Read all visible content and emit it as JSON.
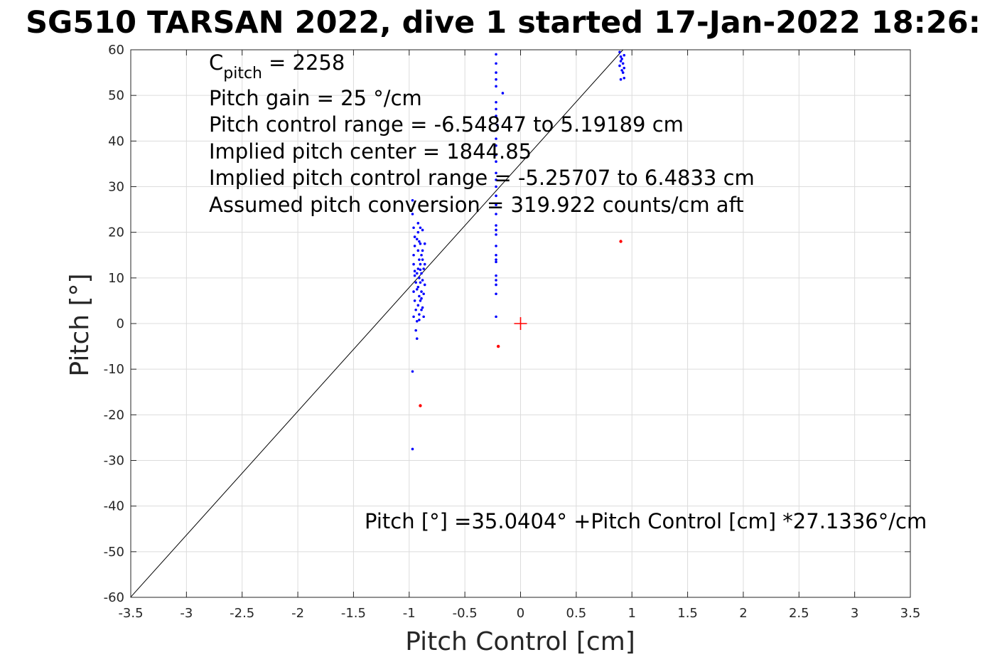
{
  "chart_data": {
    "type": "scatter",
    "title": "SG510 TARSAN 2022, dive 1 started 17-Jan-2022 18:26:",
    "xlabel": "Pitch Control [cm]",
    "ylabel": "Pitch [°]",
    "xlim": [
      -3.5,
      3.5
    ],
    "ylim": [
      -60,
      60
    ],
    "xticks": [
      -3.5,
      -3,
      -2.5,
      -2,
      -1.5,
      -1,
      -0.5,
      0,
      0.5,
      1,
      1.5,
      2,
      2.5,
      3,
      3.5
    ],
    "xtick_labels": [
      "-3.5",
      "-3",
      "-2.5",
      "-2",
      "-1.5",
      "-1",
      "-0.5",
      "0",
      "0.5",
      "1",
      "1.5",
      "2",
      "2.5",
      "3",
      "3.5"
    ],
    "yticks": [
      -60,
      -50,
      -40,
      -30,
      -20,
      -10,
      0,
      10,
      20,
      30,
      40,
      50,
      60
    ],
    "ytick_labels": [
      "-60",
      "-50",
      "-40",
      "-30",
      "-20",
      "-10",
      "0",
      "10",
      "20",
      "30",
      "40",
      "50",
      "60"
    ],
    "grid": true,
    "colors": {
      "used": "#0000ff",
      "excluded": "#ff0000",
      "fit": "#000000",
      "center": "#ff0000"
    },
    "series": [
      {
        "color": "#0000ff",
        "points": [
          [
            -0.97,
            27
          ],
          [
            -0.97,
            24
          ],
          [
            -0.96,
            21
          ],
          [
            -0.95,
            19
          ],
          [
            -0.95,
            17
          ],
          [
            -0.96,
            15
          ],
          [
            -0.96,
            13
          ],
          [
            -0.95,
            11.5
          ],
          [
            -0.95,
            10.5
          ],
          [
            -0.94,
            9
          ],
          [
            -0.96,
            7
          ],
          [
            -0.95,
            5
          ],
          [
            -0.94,
            3
          ],
          [
            -0.96,
            1.5
          ],
          [
            -0.93,
            0.5
          ],
          [
            -0.94,
            -1.5
          ],
          [
            -0.93,
            -3.3
          ],
          [
            -0.97,
            -10.5
          ],
          [
            -0.97,
            -27.5
          ],
          [
            -0.92,
            22
          ],
          [
            -0.91,
            18
          ],
          [
            -0.92,
            16
          ],
          [
            -0.91,
            14
          ],
          [
            -0.92,
            12
          ],
          [
            -0.91,
            10
          ],
          [
            -0.92,
            8
          ],
          [
            -0.91,
            6
          ],
          [
            -0.92,
            4
          ],
          [
            -0.91,
            2
          ],
          [
            -0.9,
            21
          ],
          [
            -0.9,
            17.5
          ],
          [
            -0.89,
            15
          ],
          [
            -0.9,
            13
          ],
          [
            -0.89,
            11
          ],
          [
            -0.9,
            9
          ],
          [
            -0.89,
            7
          ],
          [
            -0.9,
            5
          ],
          [
            -0.89,
            3
          ],
          [
            -0.88,
            20.5
          ],
          [
            -0.88,
            16
          ],
          [
            -0.87,
            12
          ],
          [
            -0.88,
            9.5
          ],
          [
            -0.87,
            6.5
          ],
          [
            -0.88,
            3.5
          ],
          [
            -0.87,
            1.5
          ],
          [
            -0.86,
            17.5
          ],
          [
            -0.86,
            13
          ],
          [
            -0.86,
            8.5
          ],
          [
            -0.93,
            18.5
          ],
          [
            -0.93,
            11
          ],
          [
            -0.93,
            7.5
          ],
          [
            -0.91,
            0.8
          ],
          [
            -0.88,
            14
          ],
          [
            -0.92,
            20
          ],
          [
            -0.9,
            11.8
          ],
          [
            -0.89,
            5.5
          ],
          [
            -0.22,
            59
          ],
          [
            -0.22,
            57
          ],
          [
            -0.22,
            55
          ],
          [
            -0.22,
            53.5
          ],
          [
            -0.22,
            52
          ],
          [
            -0.16,
            50.5
          ],
          [
            -0.22,
            48.5
          ],
          [
            -0.22,
            47
          ],
          [
            -0.22,
            45.5
          ],
          [
            -0.21,
            43.5
          ],
          [
            -0.22,
            40.5
          ],
          [
            -0.22,
            39
          ],
          [
            -0.22,
            37
          ],
          [
            -0.22,
            35.5
          ],
          [
            -0.22,
            33
          ],
          [
            -0.22,
            31.5
          ],
          [
            -0.22,
            30
          ],
          [
            -0.22,
            28
          ],
          [
            -0.22,
            26
          ],
          [
            -0.22,
            24
          ],
          [
            -0.22,
            21.5
          ],
          [
            -0.22,
            20.5
          ],
          [
            -0.22,
            19.5
          ],
          [
            -0.22,
            17
          ],
          [
            -0.22,
            15
          ],
          [
            -0.22,
            14
          ],
          [
            -0.22,
            13.5
          ],
          [
            -0.22,
            10.5
          ],
          [
            -0.22,
            9.5
          ],
          [
            -0.22,
            8.5
          ],
          [
            -0.22,
            6.5
          ],
          [
            -0.22,
            1.5
          ],
          [
            0.89,
            59.5
          ],
          [
            0.9,
            58.5
          ],
          [
            0.91,
            58
          ],
          [
            0.9,
            57.5
          ],
          [
            0.92,
            57
          ],
          [
            0.89,
            56.5
          ],
          [
            0.93,
            56
          ],
          [
            0.91,
            55.5
          ],
          [
            0.92,
            55
          ],
          [
            0.93,
            58.8
          ],
          [
            0.9,
            53.5
          ],
          [
            0.93,
            53.8
          ]
        ]
      },
      {
        "color": "#ff0000",
        "points": [
          [
            -0.9,
            -18
          ],
          [
            -0.2,
            -5
          ],
          [
            0.9,
            18
          ]
        ]
      }
    ],
    "fit_line": {
      "intercept": 35.0404,
      "slope": 27.1336
    },
    "center_marker": [
      0,
      0
    ],
    "annotations": {
      "c_pitch_symbol": "C",
      "c_pitch_subscript": "pitch",
      "c_pitch_value": "= 2258",
      "pitch_gain": "Pitch gain = 25 °/cm",
      "control_range": "Pitch control range = -6.54847 to 5.19189 cm",
      "implied_center": "Implied pitch center = 1844.85",
      "implied_range": "Implied pitch control range = -5.25707 to 6.4833 cm",
      "conversion": "Assumed pitch conversion = 319.922 counts/cm aft",
      "fit_equation": "Pitch [°] =35.0404° +Pitch Control [cm] *27.1336°/cm"
    }
  }
}
